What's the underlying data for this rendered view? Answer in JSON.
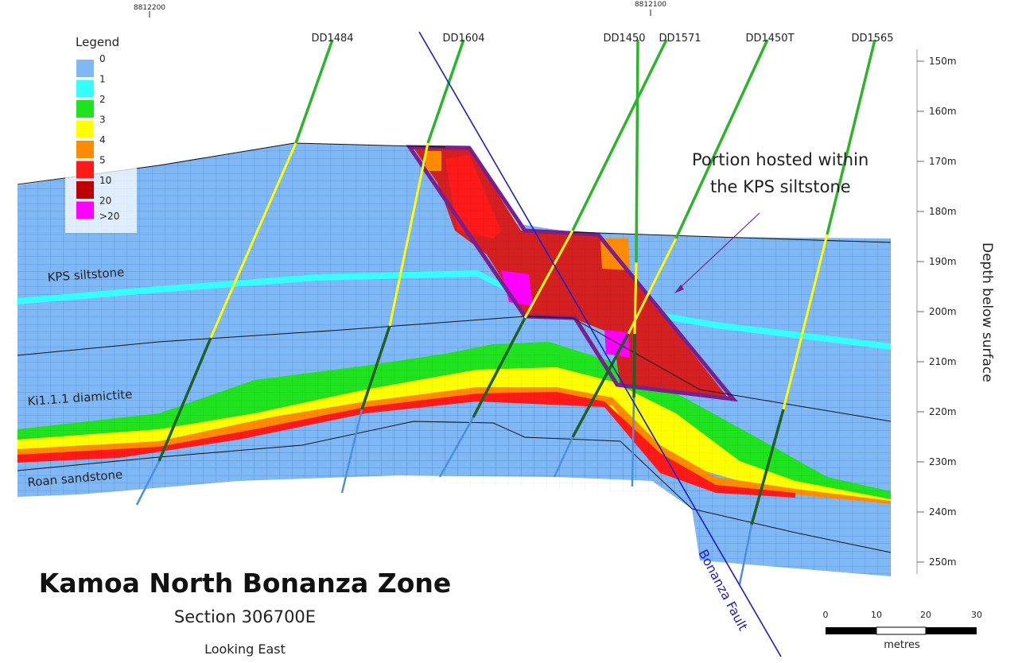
{
  "title": "Kamoa North Bonanza Zone",
  "subtitle": "Section 306700E",
  "view": "Looking East",
  "northings": [
    "8812200",
    "8812100"
  ],
  "legend": {
    "title": "Legend",
    "items": [
      {
        "label": "0",
        "color": "#7fb8f5"
      },
      {
        "label": "1",
        "color": "#33ffff"
      },
      {
        "label": "2",
        "color": "#1ee31e"
      },
      {
        "label": "3",
        "color": "#ffff00"
      },
      {
        "label": "4",
        "color": "#ff8c00"
      },
      {
        "label": "5",
        "color": "#ff1a1a"
      },
      {
        "label": "10",
        "color": "#c00000"
      },
      {
        "label": "20",
        "color": "#ff00ff"
      },
      {
        "label": ">20",
        "color": ""
      }
    ]
  },
  "drillholes": [
    "DD1484",
    "DD1604",
    "DD1450",
    "DD1571",
    "DD1450T",
    "DD1565"
  ],
  "depth_axis": {
    "title": "Depth below surface",
    "ticks": [
      "150m",
      "160m",
      "170m",
      "180m",
      "190m",
      "200m",
      "210m",
      "220m",
      "230m",
      "240m",
      "250m"
    ]
  },
  "units": [
    "KPS siltstone",
    "Ki1.1.1 diamictite",
    "Roan sandstone"
  ],
  "annotation": "Portion hosted within the KPS siltstone",
  "annotation_lines": [
    "Portion hosted within",
    "the KPS siltstone"
  ],
  "fault": "Bonanza Fault",
  "scale_bar": {
    "ticks": [
      "0",
      "10",
      "20",
      "30"
    ],
    "unit": "metres"
  },
  "colors": {
    "fault": "#1a1ad6",
    "outline": "#7a1f8f",
    "hole_upper": "#2bb52b",
    "hole_lower": "#1f5f2a",
    "hole_tail": "#4a8fe0"
  }
}
